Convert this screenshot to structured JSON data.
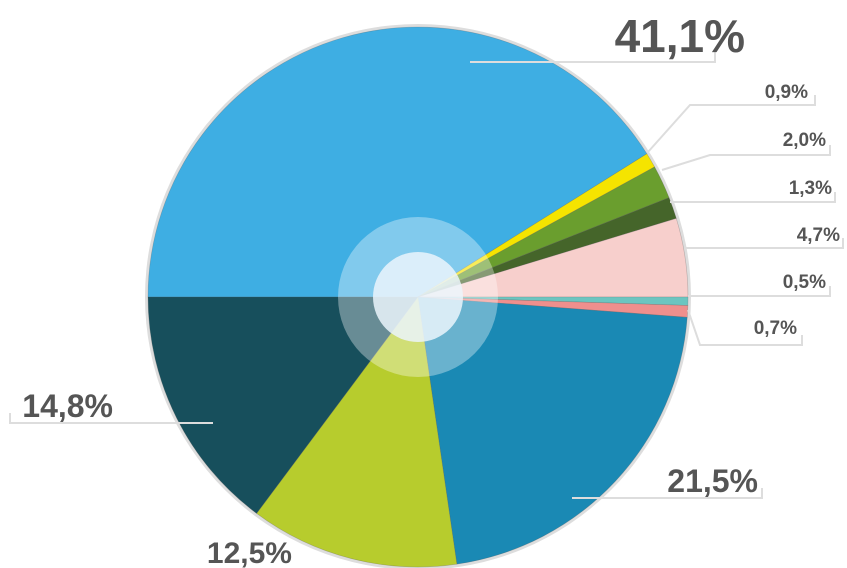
{
  "chart_data": {
    "type": "pie",
    "values": [
      41.1,
      0.9,
      2.0,
      1.3,
      4.7,
      0.5,
      0.7,
      21.5,
      12.5,
      14.8
    ],
    "value_labels": [
      "41,1%",
      "0,9%",
      "2,0%",
      "1,3%",
      "4,7%",
      "0,5%",
      "0,7%",
      "21,5%",
      "12,5%",
      "14,8%"
    ],
    "colors": [
      "#3eaee3",
      "#f5e400",
      "#6a9e2e",
      "#45652a",
      "#f7cfcc",
      "#6cc5c0",
      "#ef8f8d",
      "#1a89b4",
      "#b7cc2d",
      "#174f5c"
    ]
  }
}
